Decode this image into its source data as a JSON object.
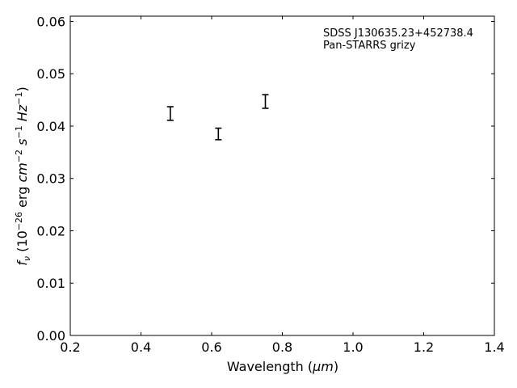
{
  "chart_data": {
    "type": "scatter",
    "annotation_lines": [
      "SDSS J130635.23+452738.4",
      "Pan-STARRS grizy"
    ],
    "xlabel": "Wavelength",
    "xlabel_unit": "μm",
    "ylabel": "f",
    "ylabel_sub": "ν",
    "ylabel_unit_parts": {
      "base": "10",
      "exp": "−26",
      "erg": "erg",
      "cm": "cm",
      "cm_exp": "−2",
      "s": "s",
      "s_exp": "−1",
      "hz": "Hz",
      "hz_exp": "−1"
    },
    "xlim": [
      0.2,
      1.4
    ],
    "ylim": [
      0.0,
      0.061
    ],
    "x_ticks": [
      0.2,
      0.4,
      0.6,
      0.8,
      1.0,
      1.2,
      1.4
    ],
    "x_tick_labels": [
      "0.2",
      "0.4",
      "0.6",
      "0.8",
      "1.0",
      "1.2",
      "1.4"
    ],
    "y_ticks": [
      0.0,
      0.01,
      0.02,
      0.03,
      0.04,
      0.05,
      0.06
    ],
    "y_tick_labels": [
      "0.00",
      "0.01",
      "0.02",
      "0.03",
      "0.04",
      "0.05",
      "0.06"
    ],
    "grid": false,
    "points": [
      {
        "x": 0.483,
        "y": 0.0424,
        "yerr": 0.0013
      },
      {
        "x": 0.619,
        "y": 0.0385,
        "yerr": 0.0011
      },
      {
        "x": 0.752,
        "y": 0.0447,
        "yerr": 0.0013
      }
    ]
  }
}
